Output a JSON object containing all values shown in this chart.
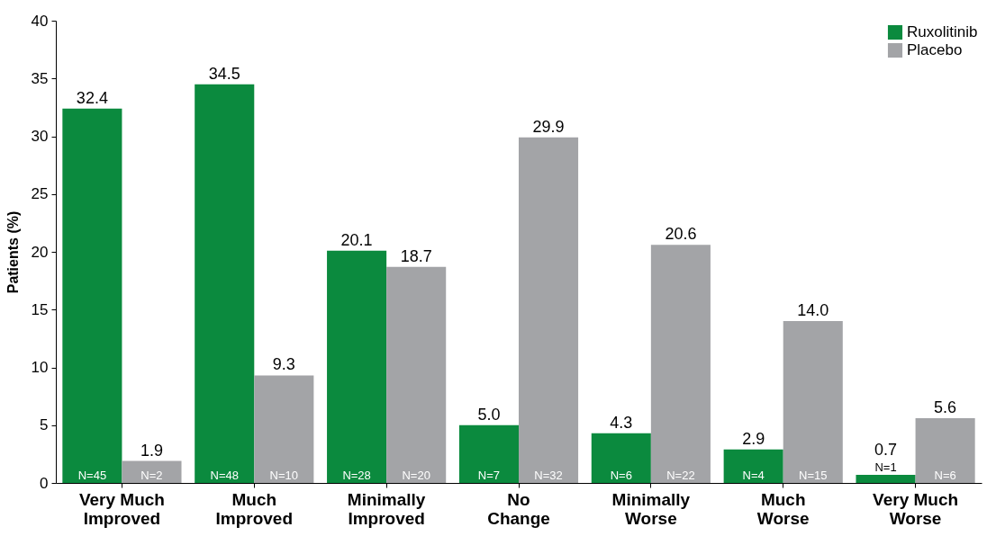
{
  "chart_data": {
    "type": "bar",
    "ylabel": "Patients (%)",
    "categories": [
      "Very Much Improved",
      "Much Improved",
      "Minimally Improved",
      "No Change",
      "Minimally Worse",
      "Much Worse",
      "Very Much Worse"
    ],
    "series": [
      {
        "name": "Ruxolitinib",
        "color": "#0b8a3e",
        "values": [
          32.4,
          34.5,
          20.1,
          5.0,
          4.3,
          2.9,
          0.7
        ],
        "value_labels": [
          "32.4",
          "34.5",
          "20.1",
          "5.0",
          "4.3",
          "2.9",
          "0.7"
        ]
      },
      {
        "name": "Placebo",
        "color": "#a3a4a7",
        "values": [
          1.9,
          9.3,
          18.7,
          29.9,
          20.6,
          14.0,
          5.6
        ],
        "value_labels": [
          "1.9",
          "9.3",
          "18.7",
          "29.9",
          "20.6",
          "14.0",
          "5.6"
        ]
      }
    ],
    "ylim": [
      0,
      40
    ],
    "yticks": [
      0,
      5,
      10,
      15,
      20,
      25,
      30,
      35,
      40
    ],
    "grid": false,
    "legend": "top right",
    "annotations": [
      {
        "text": "N=45",
        "x": "Very Much Improved",
        "y": 0
      },
      {
        "text": "N=2",
        "x": "Very Much Improved",
        "y": 0
      },
      {
        "text": "N=48",
        "x": "Much Improved",
        "y": 0
      },
      {
        "text": "N=10",
        "x": "Much Improved",
        "y": 0
      },
      {
        "text": "N=28",
        "x": "Minimally Improved",
        "y": 0
      },
      {
        "text": "N=20",
        "x": "Minimally Improved",
        "y": 0
      },
      {
        "text": "N=7",
        "x": "No Change",
        "y": 0
      },
      {
        "text": "N=32",
        "x": "No Change",
        "y": 0
      },
      {
        "text": "N=6",
        "x": "Minimally Worse",
        "y": 0
      },
      {
        "text": "N=22",
        "x": "Minimally Worse",
        "y": 0
      },
      {
        "text": "N=4",
        "x": "Much Worse",
        "y": 0
      },
      {
        "text": "N=15",
        "x": "Much Worse",
        "y": 0
      },
      {
        "text": "N=1",
        "x": "Very Much Worse",
        "y": 0.7
      },
      {
        "text": "N=6",
        "x": "Very Much Worse",
        "y": 0
      }
    ]
  }
}
